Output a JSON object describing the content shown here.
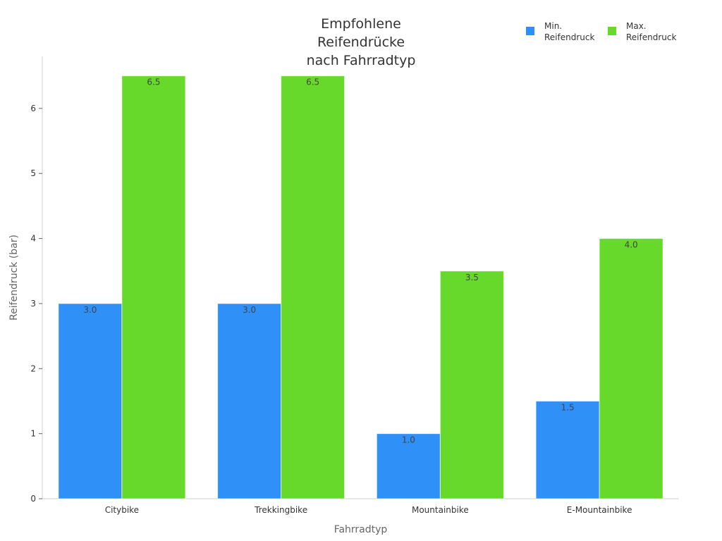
{
  "chart_data": {
    "type": "bar",
    "title_lines": [
      "Empfohlene",
      "Reifendrücke",
      "nach Fahrradtyp"
    ],
    "xlabel": "Fahrradtyp",
    "ylabel": "Reifendruck (bar)",
    "categories": [
      "Citybike",
      "Trekkingbike",
      "Mountainbike",
      "E-Mountainbike"
    ],
    "ylim": [
      0,
      6.8
    ],
    "yticks": [
      "0",
      "1",
      "2",
      "3",
      "4",
      "5",
      "6"
    ],
    "grid": false,
    "legend_position": "top-right",
    "series": [
      {
        "legend_lines": [
          "Min.",
          "Reifendruck"
        ],
        "color": "#2f91f7",
        "values": [
          3.0,
          3.0,
          1.0,
          1.5
        ],
        "labels": [
          "3.0",
          "3.0",
          "1.0",
          "1.5"
        ]
      },
      {
        "legend_lines": [
          "Max.",
          "Reifendruck"
        ],
        "color": "#66d92a",
        "values": [
          6.5,
          6.5,
          3.5,
          4.0
        ],
        "labels": [
          "6.5",
          "6.5",
          "3.5",
          "4.0"
        ]
      }
    ]
  }
}
